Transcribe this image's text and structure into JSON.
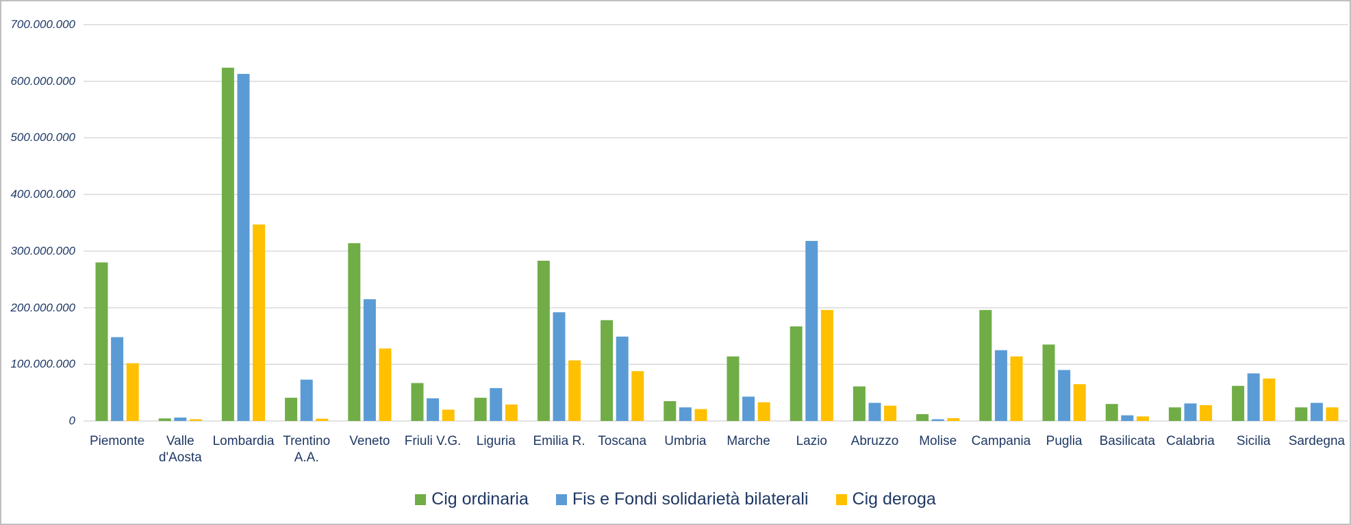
{
  "chart_data": {
    "type": "bar",
    "categories": [
      "Piemonte",
      "Valle d'Aosta",
      "Lombardia",
      "Trentino A.A.",
      "Veneto",
      "Friuli V.G.",
      "Liguria",
      "Emilia R.",
      "Toscana",
      "Umbria",
      "Marche",
      "Lazio",
      "Abruzzo",
      "Molise",
      "Campania",
      "Puglia",
      "Basilicata",
      "Calabria",
      "Sicilia",
      "Sardegna"
    ],
    "series": [
      {
        "name": "Cig ordinaria",
        "color": "#70ad47",
        "values": [
          280000000,
          4500000,
          624000000,
          41000000,
          314000000,
          67000000,
          41000000,
          283000000,
          178000000,
          35000000,
          114000000,
          167000000,
          61000000,
          12000000,
          196000000,
          135000000,
          30000000,
          24000000,
          62000000,
          24000000
        ]
      },
      {
        "name": "Fis e Fondi solidarietà bilaterali",
        "color": "#5b9bd5",
        "values": [
          148000000,
          6000000,
          613000000,
          73000000,
          215000000,
          40000000,
          58000000,
          192000000,
          149000000,
          24000000,
          43000000,
          318000000,
          32000000,
          3000000,
          125000000,
          90000000,
          10000000,
          31000000,
          84000000,
          32000000
        ]
      },
      {
        "name": "Cig deroga",
        "color": "#ffc000",
        "values": [
          102000000,
          3000000,
          347000000,
          4000000,
          128000000,
          20000000,
          29000000,
          107000000,
          88000000,
          21000000,
          33000000,
          196000000,
          27000000,
          5000000,
          114000000,
          65000000,
          8000000,
          28000000,
          75000000,
          24000000
        ]
      }
    ],
    "ylim": [
      0,
      700000000
    ],
    "yticks": [
      0,
      {
        "value": 100000000,
        "label": "100.000.000"
      },
      {
        "value": 200000000,
        "label": "200.000.000"
      },
      {
        "value": 300000000,
        "label": "300.000.000"
      },
      {
        "value": 400000000,
        "label": "400.000.000"
      },
      {
        "value": 500000000,
        "label": "500.000.000"
      },
      {
        "value": 600000000,
        "label": "600.000.000"
      },
      {
        "value": 700000000,
        "label": "700.000.000"
      }
    ],
    "grid": true,
    "legend": "bottom"
  }
}
